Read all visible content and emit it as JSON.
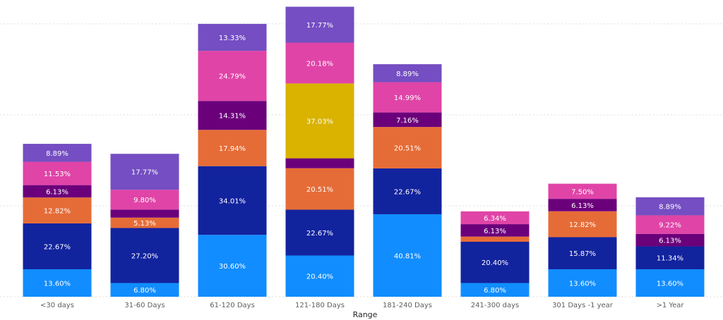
{
  "chart_data": {
    "type": "bar",
    "stacked": true,
    "xlabel": "Range",
    "ylabel": "",
    "categories": [
      "<30 days",
      "31-60 Days",
      "61-120 Days",
      "121-180 Days",
      "181-240 Days",
      "241-300 days",
      "301 Days -1 year",
      ">1 Year"
    ],
    "ylim": [
      0,
      144
    ],
    "grid": true,
    "legend": "none",
    "series": [
      {
        "color": "#118dff",
        "values": [
          13.6,
          6.8,
          30.6,
          20.4,
          40.81,
          6.8,
          13.6,
          13.6
        ],
        "labels": [
          "13.60%",
          "6.80%",
          "30.60%",
          "20.40%",
          "40.81%",
          "6.80%",
          "13.60%",
          "13.60%"
        ]
      },
      {
        "color": "#12239e",
        "values": [
          22.67,
          27.2,
          34.01,
          22.67,
          22.67,
          20.4,
          15.87,
          11.34
        ],
        "labels": [
          "22.67%",
          "27.20%",
          "34.01%",
          "22.67%",
          "22.67%",
          "20.40%",
          "15.87%",
          "11.34%"
        ]
      },
      {
        "color": "#e66c37",
        "values": [
          12.82,
          5.13,
          17.94,
          20.51,
          20.51,
          2.56,
          12.82,
          0
        ],
        "labels": [
          "12.82%",
          "5.13%",
          "17.94%",
          "20.51%",
          "20.51%",
          "",
          "12.82%",
          ""
        ]
      },
      {
        "color": "#6b007b",
        "values": [
          6.13,
          4.0,
          14.31,
          4.9,
          7.16,
          6.13,
          6.13,
          6.13
        ],
        "labels": [
          "6.13%",
          "",
          "14.31%",
          "",
          "7.16%",
          "6.13%",
          "6.13%",
          "6.13%"
        ]
      },
      {
        "color": "#d9b300",
        "values": [
          0,
          0,
          0,
          37.03,
          0,
          0,
          0,
          0
        ],
        "labels": [
          "",
          "",
          "",
          "37.03%",
          "",
          "",
          "",
          ""
        ]
      },
      {
        "color": "#e044a7",
        "values": [
          11.53,
          9.8,
          24.79,
          20.18,
          14.99,
          6.34,
          7.5,
          9.22
        ],
        "labels": [
          "11.53%",
          "9.80%",
          "24.79%",
          "20.18%",
          "14.99%",
          "6.34%",
          "7.50%",
          "9.22%"
        ]
      },
      {
        "color": "#744ec2",
        "values": [
          8.89,
          17.77,
          13.33,
          17.77,
          8.89,
          0,
          0,
          8.89
        ],
        "labels": [
          "8.89%",
          "17.77%",
          "13.33%",
          "17.77%",
          "8.89%",
          "",
          "",
          "8.89%"
        ]
      }
    ]
  }
}
